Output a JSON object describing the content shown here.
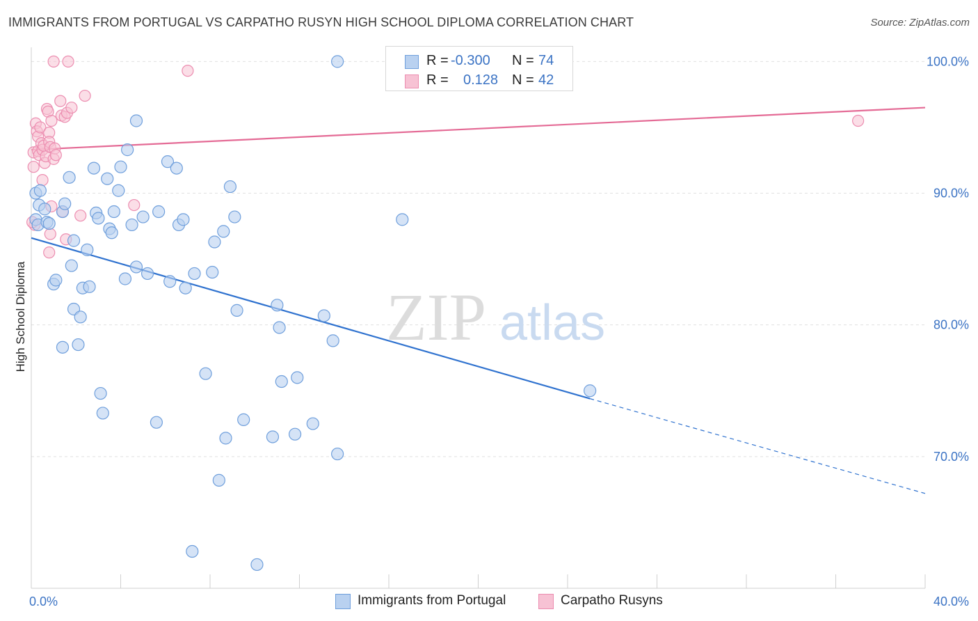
{
  "header": {
    "title": "IMMIGRANTS FROM PORTUGAL VS CARPATHO RUSYN HIGH SCHOOL DIPLOMA CORRELATION CHART",
    "source": "Source: ZipAtlas.com"
  },
  "watermark": {
    "zip": "ZIP",
    "atlas": "atlas"
  },
  "legend": {
    "rows": [
      {
        "r_label": "R =",
        "r_value": "-0.300",
        "n_label": "N =",
        "n_value": "74"
      },
      {
        "r_label": "R =",
        "r_value": "0.128",
        "n_label": "N =",
        "n_value": "42"
      }
    ]
  },
  "bottom_legend": {
    "series1": "Immigrants from Portugal",
    "series2": "Carpatho Rusyns"
  },
  "colors": {
    "blue_fill": "#b9d1f0",
    "blue_stroke": "#6f9fdc",
    "blue_line": "#2f72cf",
    "pink_fill": "#f7c2d4",
    "pink_stroke": "#ec8db0",
    "pink_line": "#e46a95",
    "tick_text": "#3b73c4",
    "grid": "#e0e0e0"
  },
  "chart_data": {
    "type": "scatter",
    "title": "IMMIGRANTS FROM PORTUGAL VS CARPATHO RUSYN HIGH SCHOOL DIPLOMA CORRELATION CHART",
    "xlabel": "",
    "ylabel": "High School Diploma",
    "xlim": [
      0,
      40
    ],
    "ylim": [
      60.0,
      101.5
    ],
    "x_tick_labels": [
      {
        "value": 0,
        "label": "0.0%"
      },
      {
        "value": 40,
        "label": "40.0%"
      }
    ],
    "y_tick_labels": [
      {
        "value": 100,
        "label": "100.0%"
      },
      {
        "value": 90,
        "label": "90.0%"
      },
      {
        "value": 80,
        "label": "80.0%"
      },
      {
        "value": 70,
        "label": "70.0%"
      }
    ],
    "y_gridlines": [
      100,
      90,
      80,
      70
    ],
    "legend_position": "top-center",
    "series": [
      {
        "name": "Immigrants from Portugal",
        "color": "#6f9fdc",
        "R": -0.3,
        "N": 74,
        "trend": {
          "x0": 0,
          "y0": 86.6,
          "x1": 25.0,
          "y1": 74.4,
          "dashed_to_x": 40,
          "dashed_y": 67.2
        },
        "points": [
          [
            0.2,
            88.0
          ],
          [
            0.3,
            87.6
          ],
          [
            0.2,
            90.0
          ],
          [
            0.4,
            90.2
          ],
          [
            0.35,
            89.1
          ],
          [
            0.6,
            88.8
          ],
          [
            0.7,
            87.8
          ],
          [
            0.8,
            87.7
          ],
          [
            1.4,
            88.6
          ],
          [
            1.5,
            89.2
          ],
          [
            1.7,
            91.2
          ],
          [
            1.8,
            84.5
          ],
          [
            1.0,
            83.1
          ],
          [
            1.1,
            83.4
          ],
          [
            1.9,
            81.2
          ],
          [
            2.2,
            80.6
          ],
          [
            1.4,
            78.3
          ],
          [
            2.1,
            78.5
          ],
          [
            1.9,
            86.4
          ],
          [
            2.5,
            85.7
          ],
          [
            2.3,
            82.8
          ],
          [
            2.6,
            82.9
          ],
          [
            2.8,
            91.9
          ],
          [
            2.9,
            88.5
          ],
          [
            3.0,
            88.1
          ],
          [
            3.4,
            91.1
          ],
          [
            3.5,
            87.3
          ],
          [
            3.6,
            87.0
          ],
          [
            3.7,
            88.6
          ],
          [
            3.9,
            90.2
          ],
          [
            4.0,
            92.0
          ],
          [
            4.2,
            83.5
          ],
          [
            4.3,
            93.3
          ],
          [
            4.5,
            87.6
          ],
          [
            4.7,
            84.4
          ],
          [
            4.7,
            95.5
          ],
          [
            5.0,
            88.2
          ],
          [
            5.2,
            83.9
          ],
          [
            5.7,
            88.6
          ],
          [
            6.1,
            92.4
          ],
          [
            6.2,
            83.3
          ],
          [
            6.5,
            91.9
          ],
          [
            6.6,
            87.6
          ],
          [
            6.8,
            88.0
          ],
          [
            6.9,
            82.8
          ],
          [
            7.3,
            83.9
          ],
          [
            7.8,
            76.3
          ],
          [
            8.1,
            84.0
          ],
          [
            8.2,
            86.3
          ],
          [
            8.6,
            87.1
          ],
          [
            8.9,
            90.5
          ],
          [
            9.1,
            88.2
          ],
          [
            9.2,
            81.1
          ],
          [
            3.1,
            74.8
          ],
          [
            3.2,
            73.3
          ],
          [
            5.6,
            72.6
          ],
          [
            8.7,
            71.4
          ],
          [
            9.5,
            72.8
          ],
          [
            10.8,
            71.5
          ],
          [
            11.0,
            81.5
          ],
          [
            11.1,
            79.8
          ],
          [
            11.2,
            75.7
          ],
          [
            11.8,
            71.7
          ],
          [
            11.9,
            76.0
          ],
          [
            12.6,
            72.5
          ],
          [
            13.1,
            80.7
          ],
          [
            13.5,
            78.8
          ],
          [
            13.7,
            70.2
          ],
          [
            8.4,
            68.2
          ],
          [
            7.2,
            62.8
          ],
          [
            10.1,
            61.8
          ],
          [
            13.7,
            100.0
          ],
          [
            16.6,
            88.0
          ],
          [
            25.0,
            75.0
          ]
        ]
      },
      {
        "name": "Carpatho Rusyns",
        "color": "#ec8db0",
        "R": 0.128,
        "N": 42,
        "trend": {
          "x0": 0,
          "y0": 93.3,
          "x1": 40,
          "y1": 96.5
        },
        "points": [
          [
            0.1,
            93.1
          ],
          [
            0.1,
            92.0
          ],
          [
            0.15,
            87.6
          ],
          [
            0.2,
            95.3
          ],
          [
            0.25,
            94.7
          ],
          [
            0.3,
            94.3
          ],
          [
            0.3,
            93.2
          ],
          [
            0.35,
            92.9
          ],
          [
            0.4,
            95.0
          ],
          [
            0.45,
            93.8
          ],
          [
            0.5,
            93.3
          ],
          [
            0.5,
            91.0
          ],
          [
            0.55,
            93.6
          ],
          [
            0.6,
            92.3
          ],
          [
            0.65,
            92.8
          ],
          [
            0.7,
            96.4
          ],
          [
            0.75,
            96.2
          ],
          [
            0.8,
            94.6
          ],
          [
            0.8,
            93.9
          ],
          [
            0.85,
            93.5
          ],
          [
            0.9,
            89.0
          ],
          [
            0.85,
            86.9
          ],
          [
            0.8,
            85.5
          ],
          [
            0.9,
            95.5
          ],
          [
            1.0,
            92.6
          ],
          [
            1.0,
            100.0
          ],
          [
            1.05,
            93.4
          ],
          [
            1.1,
            92.9
          ],
          [
            1.3,
            97.0
          ],
          [
            1.35,
            95.9
          ],
          [
            1.4,
            88.6
          ],
          [
            1.5,
            95.8
          ],
          [
            1.55,
            86.5
          ],
          [
            1.6,
            96.1
          ],
          [
            1.65,
            100.0
          ],
          [
            1.8,
            96.5
          ],
          [
            2.2,
            88.3
          ],
          [
            2.4,
            97.4
          ],
          [
            4.6,
            89.1
          ],
          [
            7.0,
            99.3
          ],
          [
            37.0,
            95.5
          ],
          [
            0.05,
            87.8
          ]
        ]
      }
    ]
  }
}
